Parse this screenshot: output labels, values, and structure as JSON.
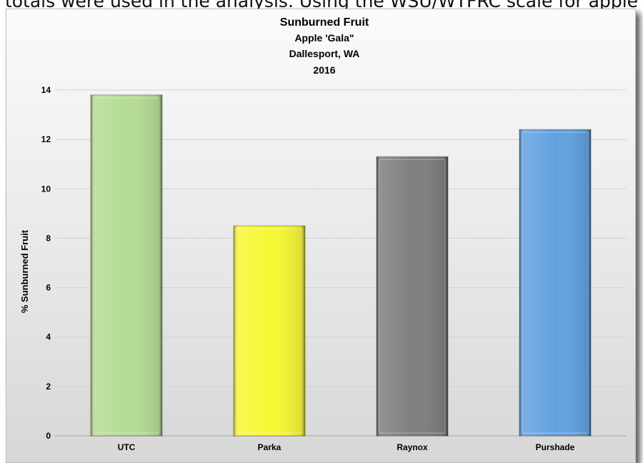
{
  "page": {
    "top_text": "totals were used in the analysis. Using the WSU/WTFRC scale for apple"
  },
  "chart_data": {
    "type": "bar",
    "title_lines": [
      "Sunburned Fruit",
      "Apple 'Gala\"",
      "Dallesport, WA",
      "2016"
    ],
    "ylabel": "% Sunburned Fruit",
    "xlabel": "",
    "categories": [
      "UTC",
      "Parka",
      "Raynox",
      "Purshade"
    ],
    "values": [
      13.8,
      8.5,
      11.3,
      12.4
    ],
    "colors": [
      "#b5dc94",
      "#f7f736",
      "#7f7f7f",
      "#62a1e0"
    ],
    "ylim": [
      0,
      14
    ],
    "yticks": [
      "0",
      "2",
      "4",
      "6",
      "8",
      "10",
      "12",
      "14"
    ],
    "grid": true,
    "legend": "none"
  }
}
